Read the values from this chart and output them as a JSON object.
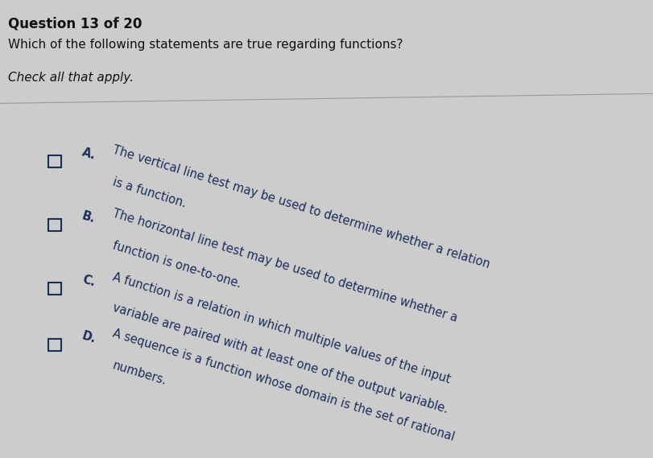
{
  "background_color": "#cccccc",
  "question_number": "Question 13 of 20",
  "question_number_fontsize": 12,
  "question_text": "Which of the following statements are true regarding functions?",
  "question_fontsize": 11,
  "check_all_text": "Check all that apply.",
  "check_all_fontsize": 11,
  "text_color_dark": "#111111",
  "text_color_blue": "#1a2e5a",
  "checkbox_color": "#1a2e5a",
  "rotation": -17,
  "options": [
    {
      "label": "A.",
      "line1": "The vertical line test may be used to determine whether a relation",
      "line2": "is a function."
    },
    {
      "label": "B.",
      "line1": "The horizontal line test may be used to determine whether a",
      "line2": "function is one-to-one."
    },
    {
      "label": "C.",
      "line1": "A function is a relation in which multiple values of the input",
      "line2": "variable are paired with at least one of the output variable."
    },
    {
      "label": "D.",
      "line1": "A sequence is a function whose domain is the set of rational",
      "line2": "numbers."
    }
  ],
  "option_fontsize": 10.5,
  "label_fontsize": 10.5
}
